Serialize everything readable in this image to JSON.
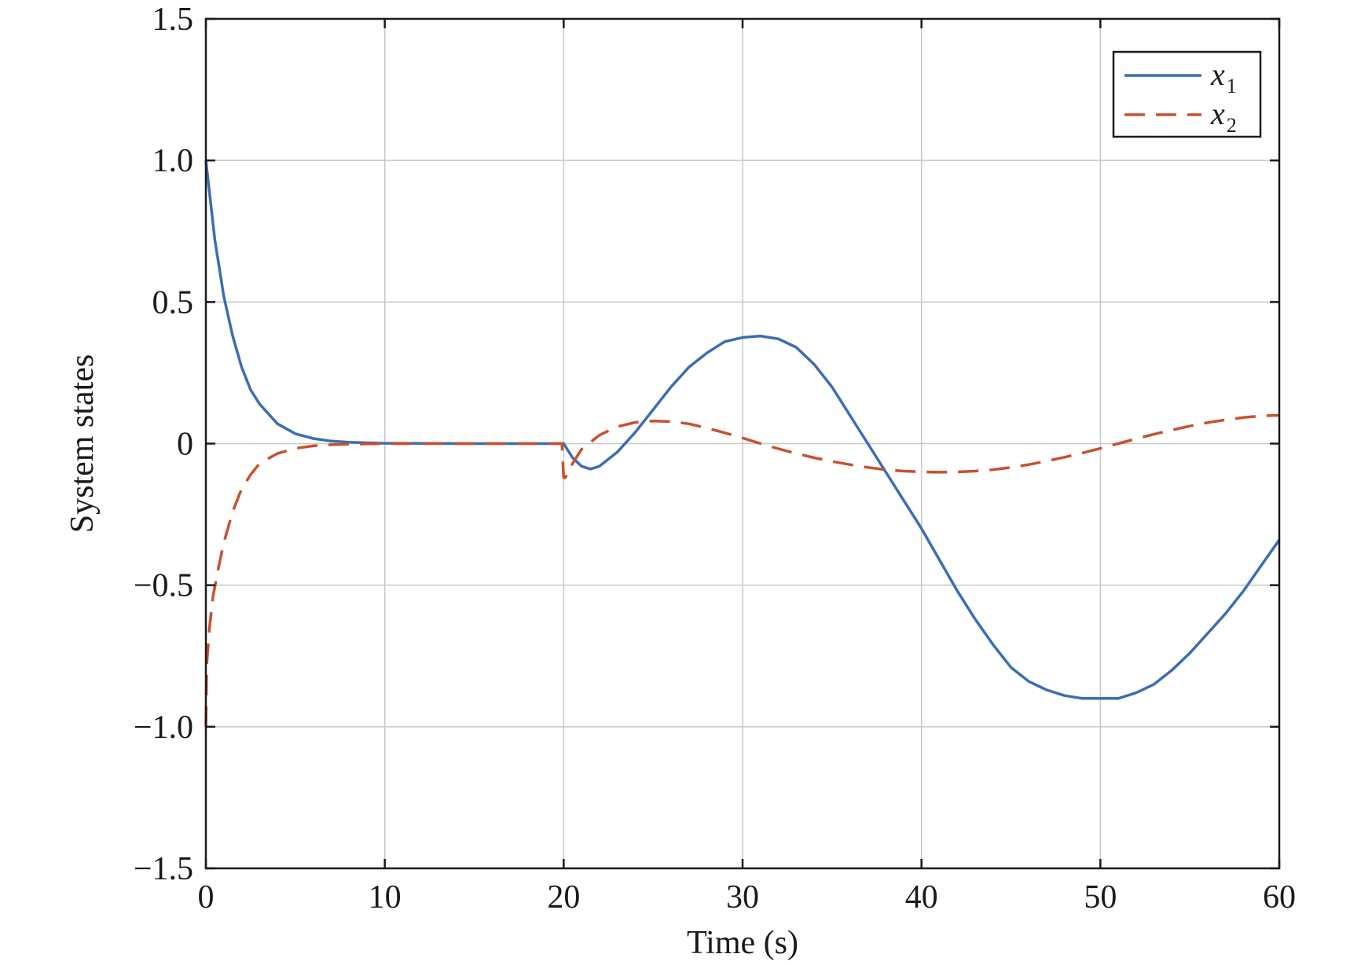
{
  "chart_data": {
    "type": "line",
    "title": "",
    "xlabel": "Time (s)",
    "ylabel": "System states",
    "xlim": [
      0,
      60
    ],
    "ylim": [
      -1.5,
      1.5
    ],
    "xticks": [
      0,
      10,
      20,
      30,
      40,
      50,
      60
    ],
    "xtick_labels": [
      "0",
      "10",
      "20",
      "30",
      "40",
      "50",
      "60"
    ],
    "yticks": [
      -1.5,
      -1.0,
      -0.5,
      0,
      0.5,
      1.0,
      1.5
    ],
    "ytick_labels": [
      "−1.5",
      "−1.0",
      "−0.5",
      "0",
      "0.5",
      "1.0",
      "1.5"
    ],
    "grid": true,
    "legend_position": "top-right",
    "series": [
      {
        "name": "x",
        "subscript": "1",
        "color": "#3b6db5",
        "style": "solid",
        "x": [
          0,
          0.5,
          1,
          1.5,
          2,
          2.5,
          3,
          4,
          5,
          6,
          7,
          8,
          10,
          15,
          19.9,
          20,
          20.5,
          21,
          21.5,
          22,
          23,
          24,
          25,
          26,
          27,
          28,
          29,
          30,
          31,
          32,
          33,
          34,
          35,
          36,
          37,
          38,
          39,
          40,
          41,
          42,
          43,
          44,
          45,
          46,
          47,
          48,
          49,
          50,
          51,
          52,
          53,
          54,
          55,
          56,
          57,
          58,
          59,
          60
        ],
        "y": [
          1.0,
          0.72,
          0.52,
          0.38,
          0.27,
          0.19,
          0.14,
          0.07,
          0.035,
          0.018,
          0.009,
          0.005,
          0.001,
          0.0,
          0.0,
          0.0,
          -0.05,
          -0.08,
          -0.09,
          -0.08,
          -0.03,
          0.04,
          0.12,
          0.2,
          0.27,
          0.32,
          0.36,
          0.375,
          0.38,
          0.37,
          0.34,
          0.28,
          0.2,
          0.1,
          -0.0,
          -0.1,
          -0.2,
          -0.3,
          -0.41,
          -0.52,
          -0.62,
          -0.71,
          -0.79,
          -0.84,
          -0.87,
          -0.89,
          -0.9,
          -0.9,
          -0.9,
          -0.88,
          -0.85,
          -0.8,
          -0.74,
          -0.67,
          -0.6,
          -0.52,
          -0.43,
          -0.34
        ]
      },
      {
        "name": "x",
        "subscript": "2",
        "color": "#c9502e",
        "style": "dashed",
        "x": [
          0,
          0.05,
          0.2,
          0.4,
          0.7,
          1,
          1.5,
          2,
          2.5,
          3,
          4,
          5,
          6,
          7,
          8,
          10,
          15,
          19.9,
          20,
          20.1,
          20.5,
          21,
          22,
          23,
          24,
          25,
          26,
          27,
          28,
          29,
          30,
          31,
          32,
          33,
          34,
          35,
          36,
          37,
          38,
          39,
          40,
          41,
          42,
          43,
          44,
          45,
          46,
          47,
          48,
          49,
          50,
          51,
          52,
          53,
          54,
          55,
          56,
          57,
          58,
          59,
          60
        ],
        "y": [
          -1.0,
          -0.78,
          -0.65,
          -0.54,
          -0.44,
          -0.35,
          -0.24,
          -0.16,
          -0.11,
          -0.07,
          -0.035,
          -0.017,
          -0.008,
          -0.004,
          -0.002,
          -0.0,
          0.0,
          0.0,
          -0.12,
          -0.12,
          -0.07,
          -0.02,
          0.03,
          0.06,
          0.075,
          0.08,
          0.078,
          0.07,
          0.055,
          0.038,
          0.02,
          0.0,
          -0.018,
          -0.035,
          -0.05,
          -0.063,
          -0.074,
          -0.084,
          -0.092,
          -0.097,
          -0.1,
          -0.101,
          -0.1,
          -0.097,
          -0.092,
          -0.084,
          -0.074,
          -0.062,
          -0.048,
          -0.033,
          -0.017,
          0.0,
          0.017,
          0.033,
          0.048,
          0.062,
          0.074,
          0.084,
          0.092,
          0.098,
          0.1
        ]
      }
    ]
  }
}
